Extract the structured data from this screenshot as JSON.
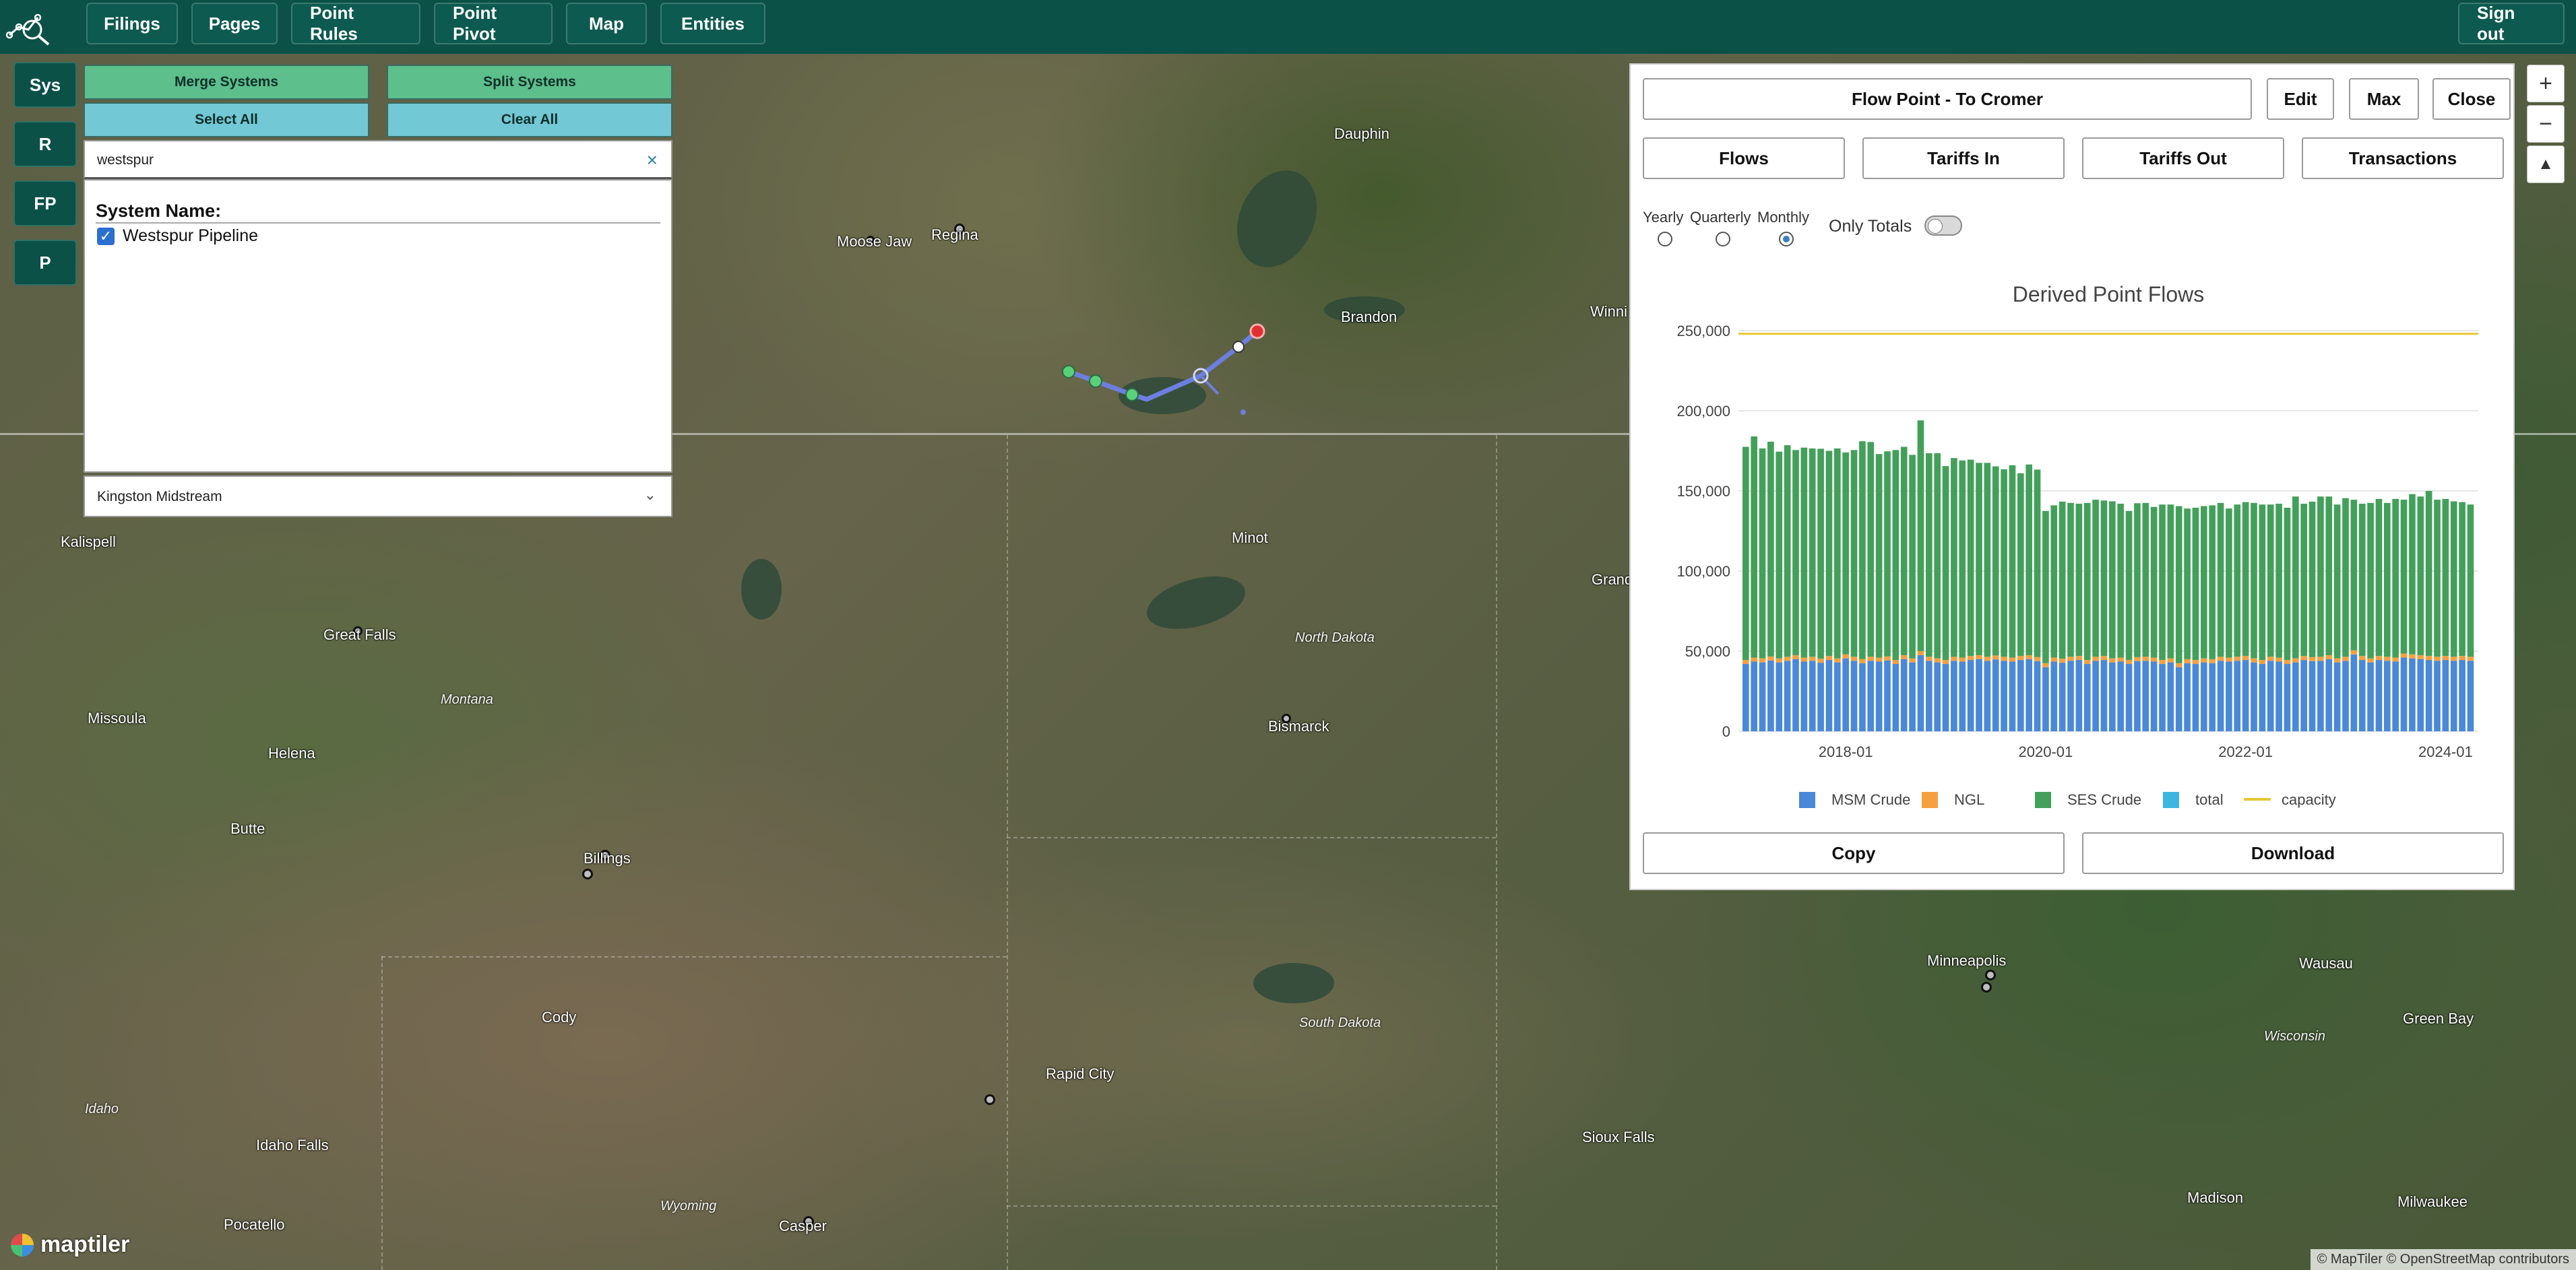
{
  "nav": {
    "buttons": [
      "Filings",
      "Pages",
      "Point Rules",
      "Point Pivot",
      "Map",
      "Entities"
    ],
    "sign_out": "Sign out"
  },
  "side_buttons": [
    "Sys",
    "R",
    "FP",
    "P"
  ],
  "system_panel": {
    "merge_label": "Merge Systems",
    "split_label": "Split Systems",
    "select_all_label": "Select All",
    "clear_all_label": "Clear All",
    "search_value": "westspur",
    "clear_icon": "×",
    "list_title": "System Name:",
    "items": [
      {
        "label": "Westspur Pipeline",
        "checked": true
      }
    ],
    "owner_select_value": "Kingston Midstream",
    "chevron": "⌄"
  },
  "flow_point": {
    "title": "Flow Point - To Cromer",
    "edit_label": "Edit",
    "max_label": "Max",
    "close_label": "Close",
    "tabs": [
      "Flows",
      "Tariffs In",
      "Tariffs Out",
      "Transactions"
    ],
    "period_labels": [
      "Yearly",
      "Quarterly",
      "Monthly"
    ],
    "selected_period": "Monthly",
    "only_totals_label": "Only Totals",
    "only_totals_on": false,
    "copy_label": "Copy",
    "download_label": "Download"
  },
  "map": {
    "places": [
      "Dauphin",
      "Moose Jaw",
      "Regina",
      "Brandon",
      "Winni",
      "Kalispell",
      "Minot",
      "Grand",
      "Great Falls",
      "Missoula",
      "Helena",
      "Bismarck",
      "Butte",
      "Billings",
      "Cody",
      "Rapid City",
      "Minneapolis",
      "Wausau",
      "Green Bay",
      "Idaho Falls",
      "Pocatello",
      "Casper",
      "Sioux Falls",
      "Madison",
      "Milwaukee"
    ],
    "regions": [
      "Montana",
      "North Dakota",
      "South Dakota",
      "Wisconsin",
      "Idaho",
      "Wyoming"
    ],
    "attribution": "© MapTiler © OpenStreetMap contributors",
    "brand": "maptiler",
    "zoom_in": "+",
    "zoom_out": "−",
    "compass": "▲",
    "colors": {
      "pipeline": "#6c7fe0",
      "node": "#5ad07a",
      "endpoint": "#e03030"
    }
  },
  "chart_data": {
    "type": "bar",
    "title": "Derived Point Flows",
    "ylim": [
      0,
      250000
    ],
    "yticks": [
      "0",
      "50,000",
      "100,000",
      "150,000",
      "200,000",
      "250,000"
    ],
    "xticks": [
      "2018-01",
      "2020-01",
      "2022-01",
      "2024-01"
    ],
    "x_start": "2017-01",
    "x_end": "2024-12",
    "stacked": true,
    "series": [
      {
        "name": "MSM Crude",
        "color": "#4a88d8",
        "values": [
          42000,
          43500,
          43000,
          44200,
          43000,
          44000,
          45000,
          43500,
          44000,
          42800,
          44500,
          43000,
          45500,
          44000,
          42500,
          44000,
          43500,
          44200,
          42000,
          45000,
          43000,
          47500,
          44000,
          43000,
          42000,
          44000,
          43500,
          44500,
          45000,
          44000,
          44800,
          44000,
          43500,
          44500,
          45000,
          43800,
          40000,
          43500,
          42800,
          44000,
          44500,
          42000,
          44000,
          44500,
          43000,
          43500,
          42000,
          43800,
          44000,
          43500,
          42000,
          43000,
          40000,
          42500,
          42000,
          43000,
          42500,
          44000,
          43500,
          44000,
          44500,
          43000,
          42000,
          44000,
          43500,
          42000,
          43000,
          44500,
          43800,
          44000,
          45000,
          43000,
          44000,
          48000,
          44500,
          43000,
          44500,
          44000,
          43500,
          46000,
          45500,
          45000,
          44500,
          44000,
          44500,
          44000,
          44500,
          44000
        ]
      },
      {
        "name": "NGL",
        "color": "#f5a040",
        "values": [
          2500,
          2500,
          2500,
          2500,
          2500,
          2500,
          2500,
          2500,
          2500,
          2500,
          2500,
          2500,
          2500,
          2500,
          2500,
          2500,
          2500,
          2500,
          2500,
          2500,
          2500,
          2500,
          2500,
          2500,
          2500,
          2500,
          2500,
          2500,
          2500,
          2500,
          2500,
          2500,
          2500,
          2500,
          2500,
          2500,
          2500,
          2500,
          2500,
          2500,
          2500,
          2500,
          2500,
          2500,
          2500,
          2500,
          2500,
          2500,
          2500,
          2500,
          2500,
          2500,
          2500,
          2500,
          2500,
          2500,
          2500,
          2500,
          2500,
          2500,
          2500,
          2500,
          2500,
          2500,
          2500,
          2500,
          2500,
          2500,
          2500,
          2500,
          2500,
          2500,
          2500,
          2500,
          2500,
          2500,
          2500,
          2500,
          2500,
          2500,
          2500,
          2500,
          2500,
          2500,
          2500,
          2500,
          2500,
          2500
        ]
      },
      {
        "name": "SES Crude",
        "color": "#43a05a",
        "values": [
          133000,
          138000,
          131000,
          134000,
          129000,
          132000,
          128000,
          131000,
          130000,
          131000,
          128000,
          131000,
          126000,
          129000,
          136000,
          134000,
          127000,
          128000,
          131000,
          130000,
          127000,
          144000,
          127000,
          128000,
          121000,
          124000,
          123000,
          122500,
          120000,
          121000,
          118000,
          117000,
          120000,
          114000,
          119000,
          117000,
          95000,
          95000,
          98000,
          96000,
          95000,
          98000,
          98000,
          97000,
          98000,
          96000,
          93000,
          96000,
          96000,
          94000,
          97000,
          96000,
          98000,
          94000,
          95000,
          95000,
          96000,
          96000,
          93000,
          95000,
          96000,
          97000,
          97000,
          95000,
          96000,
          95000,
          101000,
          95000,
          97000,
          100000,
          99000,
          96000,
          99000,
          94000,
          95000,
          97000,
          98000,
          96000,
          99000,
          96000,
          100000,
          99000,
          103000,
          98000,
          98000,
          97000,
          96000,
          95000
        ]
      },
      {
        "name": "total",
        "color": "#3cb6e0",
        "values": []
      },
      {
        "name": "capacity",
        "color": "#e8c832",
        "kind": "line",
        "values": [
          248000
        ]
      }
    ]
  }
}
